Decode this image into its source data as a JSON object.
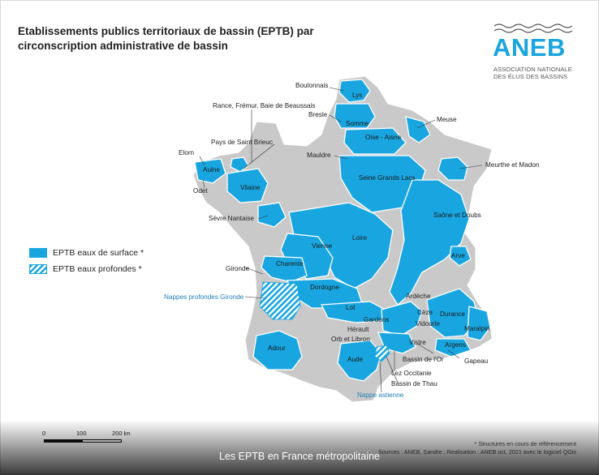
{
  "title": "Etablissements publics territoriaux de bassin (EPTB) par circonscription administrative de bassin",
  "logo": {
    "name": "ANEB",
    "subtitle_line1": "ASSOCIATION NATIONALE",
    "subtitle_line2": "DES ÉLUS DES BASSINS",
    "icon": "wave-lines-icon"
  },
  "legend": {
    "surface": "EPTB eaux de surface *",
    "deep": "EPTB eaux profondes *"
  },
  "colors": {
    "surface": "#19a6e0",
    "land": "#c9c9c9",
    "borders": "#ffffff",
    "label_blue": "#1f7fb6"
  },
  "map_labels": {
    "boulonnais": "Boulonnais",
    "lys": "Lys",
    "rance": "Rance, Frémur, Baie de Beaussais",
    "bresle": "Bresle",
    "somme": "Somme",
    "meuse": "Meuse",
    "oise_aisne": "Oise - Aisne",
    "pays_saint_brieuc": "Pays de Saint Brieuc",
    "elorn": "Elorn",
    "mauldre": "Mauldre",
    "aulne": "Aulne",
    "meurthe_madon": "Meurthe et Madon",
    "seine_grands_lacs": "Seine Grands Lacs",
    "odet": "Odet",
    "vilaine": "Vilaine",
    "sevre_nantaise": "Sèvre Nantaise",
    "saone_doubs": "Saône et Doubs",
    "loire": "Loire",
    "vienne": "Vienne",
    "arve": "Arve",
    "gironde": "Gironde",
    "charente": "Charente",
    "dordogne": "Dordogne",
    "nappes_gironde": "Nappes profondes Gironde",
    "ardeche": "Ardèche",
    "lot": "Lot",
    "ceze": "Cèze",
    "durance": "Durance",
    "gardons": "Gardons",
    "herault": "Hérault",
    "vidourle": "Vidourle",
    "maralpin": "Maralpin",
    "orb_libron": "Orb et Libron",
    "vistre": "Vistre",
    "argens": "Argens",
    "adour": "Adour",
    "aude": "Aude",
    "bassin_or": "Bassin de l'Or",
    "gapeau": "Gapeau",
    "lez_occitanie": "Lez Occitanie",
    "bassin_thau": "Bassin de Thau",
    "nappe_astienne": "Nappe astienne"
  },
  "scale": {
    "zero": "0",
    "mid": "100",
    "end": "200 kn"
  },
  "notes": {
    "asterisk": "* Structures en cours de référencement",
    "sources": "Sources : ANEB, Sandre ; Realisation : ANEB oct. 2021 avec le logiciel QGis"
  },
  "caption": "Les EPTB en France métropolitaine"
}
